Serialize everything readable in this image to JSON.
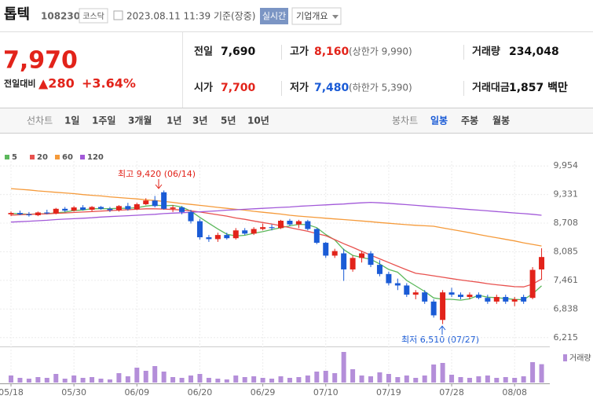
{
  "header": {
    "name": "톱텍",
    "code": "108230",
    "market": "코스닥",
    "datetime": "2023.08.11 11:39 기준(장중)",
    "realtime": "실시간",
    "company": "기업개요"
  },
  "quote": {
    "price": "7,970",
    "change_label": "전일대비",
    "change": "▲280",
    "change_pct": "+3.64%",
    "rows": [
      [
        {
          "label": "전일",
          "value": "7,690"
        },
        {
          "label": "고가",
          "value": "8,160",
          "sub": "(상한가 9,990)"
        },
        {
          "label": "거래량",
          "value": "234,048"
        }
      ],
      [
        {
          "label": "시가",
          "value": "7,700"
        },
        {
          "label": "저가",
          "value": "7,480",
          "sub": "(하한가 5,390)"
        },
        {
          "label": "거래대금",
          "value": "1,857 백만"
        }
      ]
    ]
  },
  "tabs": {
    "line_label": "선차트",
    "line": [
      "1일",
      "1주일",
      "3개월",
      "1년",
      "3년",
      "5년",
      "10년"
    ],
    "candle_label": "봉차트",
    "candle": [
      "일봉",
      "주봉",
      "월봉"
    ]
  },
  "chart_data": {
    "type": "candlestick",
    "categories": [
      "05/18",
      null,
      null,
      null,
      null,
      null,
      null,
      "05/30",
      null,
      null,
      null,
      null,
      null,
      null,
      "06/09",
      null,
      null,
      null,
      null,
      null,
      null,
      "06/20",
      null,
      null,
      null,
      null,
      null,
      null,
      "06/29",
      null,
      null,
      null,
      null,
      null,
      null,
      "07/10",
      null,
      null,
      null,
      null,
      null,
      null,
      "07/19",
      null,
      null,
      null,
      null,
      null,
      null,
      "07/28",
      null,
      null,
      null,
      null,
      null,
      null,
      "08/08",
      null,
      null,
      null
    ],
    "open": [
      8900,
      8930,
      8900,
      8880,
      8940,
      8920,
      9020,
      8980,
      9050,
      9000,
      9060,
      9020,
      8990,
      9080,
      9010,
      9120,
      9200,
      9380,
      9020,
      9050,
      8950,
      8750,
      8400,
      8360,
      8450,
      8380,
      8550,
      8480,
      8580,
      8620,
      8600,
      8760,
      8680,
      8750,
      8580,
      8280,
      8000,
      8050,
      7700,
      7950,
      8050,
      7800,
      7600,
      7400,
      7350,
      7150,
      7200,
      7000,
      6600,
      7200,
      7150,
      7100,
      7150,
      7080,
      7000,
      7100,
      7000,
      7100,
      7080,
      7700
    ],
    "high": [
      8960,
      8980,
      8950,
      8960,
      9000,
      9040,
      9060,
      9080,
      9100,
      9080,
      9080,
      9060,
      9100,
      9150,
      9150,
      9250,
      9300,
      9420,
      9100,
      9080,
      9000,
      8800,
      8450,
      8500,
      8500,
      8600,
      8600,
      8620,
      8700,
      8680,
      8780,
      8800,
      8780,
      8780,
      8600,
      8300,
      8150,
      8150,
      8000,
      8100,
      8100,
      7900,
      7650,
      7500,
      7400,
      7250,
      7250,
      7050,
      7250,
      7300,
      7200,
      7200,
      7200,
      7150,
      7150,
      7150,
      7100,
      7150,
      7750,
      8160
    ],
    "low": [
      8860,
      8880,
      8850,
      8860,
      8900,
      8900,
      8950,
      8960,
      8980,
      8970,
      9000,
      8950,
      8960,
      8980,
      8990,
      9100,
      9050,
      9000,
      8950,
      8900,
      8700,
      8350,
      8300,
      8300,
      8350,
      8350,
      8450,
      8450,
      8550,
      8550,
      8580,
      8650,
      8600,
      8550,
      8250,
      7950,
      7950,
      7450,
      7650,
      7850,
      7750,
      7550,
      7350,
      7250,
      7100,
      7050,
      6950,
      6650,
      6510,
      7100,
      7050,
      7050,
      7050,
      6950,
      6950,
      6950,
      6900,
      6950,
      7050,
      7480
    ],
    "close": [
      8930,
      8900,
      8880,
      8940,
      8920,
      9020,
      8980,
      9050,
      9000,
      9060,
      9020,
      8990,
      9080,
      9010,
      9120,
      9200,
      9080,
      9020,
      9050,
      8950,
      8750,
      8400,
      8360,
      8450,
      8380,
      8550,
      8480,
      8580,
      8620,
      8600,
      8760,
      8680,
      8750,
      8580,
      8280,
      8000,
      8100,
      7700,
      7950,
      8050,
      7800,
      7600,
      7400,
      7350,
      7150,
      7200,
      7000,
      6700,
      7200,
      7150,
      7100,
      7150,
      7080,
      7000,
      7100,
      7000,
      7050,
      7000,
      7690,
      7970
    ],
    "volume": [
      90000,
      60000,
      50000,
      70000,
      60000,
      110000,
      50000,
      90000,
      60000,
      70000,
      50000,
      40000,
      120000,
      80000,
      190000,
      150000,
      210000,
      140000,
      70000,
      60000,
      90000,
      110000,
      60000,
      50000,
      40000,
      90000,
      70000,
      80000,
      60000,
      50000,
      80000,
      60000,
      70000,
      90000,
      140000,
      150000,
      120000,
      390000,
      170000,
      90000,
      80000,
      130000,
      110000,
      70000,
      90000,
      60000,
      90000,
      230000,
      250000,
      100000,
      70000,
      60000,
      80000,
      90000,
      60000,
      70000,
      60000,
      80000,
      260000,
      234048
    ],
    "volume_label": "거래량",
    "volume_color": "#b48ed9",
    "volume_ylim": [
      0,
      420000
    ],
    "up_color": "#e2231a",
    "down_color": "#1a5bd6",
    "series": [
      {
        "name": "5",
        "color": "#5cb85c",
        "values": [
          8920,
          8910,
          8900,
          8910,
          8914,
          8932,
          8948,
          8982,
          8994,
          9022,
          9022,
          9024,
          9030,
          9032,
          9044,
          9080,
          9098,
          9086,
          9094,
          9060,
          8970,
          8834,
          8706,
          8582,
          8468,
          8428,
          8444,
          8488,
          8522,
          8566,
          8608,
          8648,
          8682,
          8674,
          8610,
          8458,
          8342,
          8132,
          8006,
          7960,
          7920,
          7820,
          7700,
          7640,
          7460,
          7340,
          7220,
          7080,
          7050,
          7050,
          7030,
          7060,
          7136,
          7096,
          7086,
          7066,
          7046,
          7040,
          7168,
          7342
        ]
      },
      {
        "name": "20",
        "color": "#e8524f",
        "values": [
          8880,
          8890,
          8900,
          8905,
          8910,
          8920,
          8930,
          8940,
          8950,
          8960,
          8970,
          8980,
          8990,
          9000,
          9010,
          9020,
          9020,
          9015,
          9005,
          8995,
          8975,
          8950,
          8920,
          8890,
          8860,
          8820,
          8790,
          8755,
          8720,
          8690,
          8650,
          8610,
          8570,
          8530,
          8480,
          8435,
          8350,
          8260,
          8180,
          8095,
          8010,
          7930,
          7850,
          7770,
          7690,
          7615,
          7590,
          7560,
          7530,
          7500,
          7470,
          7445,
          7420,
          7390,
          7365,
          7345,
          7325,
          7320,
          7380,
          7490
        ]
      },
      {
        "name": "60",
        "color": "#f59a3a",
        "values": [
          9460,
          9445,
          9430,
          9410,
          9395,
          9380,
          9365,
          9350,
          9330,
          9315,
          9300,
          9280,
          9265,
          9250,
          9235,
          9215,
          9200,
          9180,
          9160,
          9135,
          9115,
          9095,
          9075,
          9050,
          9030,
          9010,
          8990,
          8965,
          8945,
          8925,
          8905,
          8880,
          8860,
          8845,
          8830,
          8815,
          8800,
          8785,
          8770,
          8755,
          8740,
          8720,
          8705,
          8690,
          8675,
          8660,
          8650,
          8640,
          8605,
          8570,
          8535,
          8500,
          8460,
          8425,
          8390,
          8355,
          8320,
          8280,
          8245,
          8210
        ]
      },
      {
        "name": "120",
        "color": "#a259d9",
        "values": [
          8730,
          8740,
          8750,
          8760,
          8770,
          8785,
          8795,
          8805,
          8815,
          8825,
          8840,
          8850,
          8860,
          8870,
          8880,
          8890,
          8900,
          8915,
          8925,
          8935,
          8945,
          8955,
          8965,
          8975,
          8990,
          9000,
          9010,
          9020,
          9030,
          9040,
          9050,
          9060,
          9075,
          9085,
          9095,
          9105,
          9115,
          9125,
          9140,
          9150,
          9160,
          9150,
          9140,
          9125,
          9110,
          9095,
          9080,
          9065,
          9050,
          9035,
          9020,
          9005,
          8990,
          8975,
          8960,
          8945,
          8930,
          8915,
          8900,
          8880
        ]
      }
    ],
    "ylim": [
      6040,
      10060
    ],
    "yticks": [
      {
        "value": 9954,
        "label": "9,954"
      },
      {
        "value": 9331,
        "label": "9,331"
      },
      {
        "value": 8708,
        "label": "8,708"
      },
      {
        "value": 8085,
        "label": "8,085"
      },
      {
        "value": 7461,
        "label": "7,461"
      },
      {
        "value": 6838,
        "label": "6,838"
      },
      {
        "value": 6215,
        "label": "6,215"
      }
    ],
    "grid": true,
    "annotations": [
      {
        "text": "최고 9,420 (06/14)"
      },
      {
        "text": "최저 6,510 (07/27)"
      }
    ]
  }
}
